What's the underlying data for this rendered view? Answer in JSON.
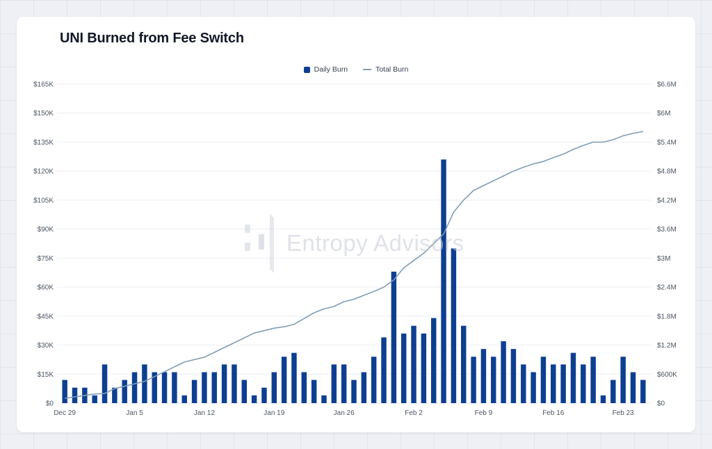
{
  "colors": {
    "bar": "#0d3f91",
    "line": "#7f9db6",
    "grid": "#eceef2",
    "tick_text": "#4b5563"
  },
  "watermark": {
    "text": "Entropy Advisors",
    "icon": "entropy-advisors-logo-icon"
  },
  "chart_data": {
    "type": "bar+line",
    "title": "UNI Burned from Fee Switch",
    "legend": [
      {
        "name": "Daily Burn",
        "kind": "bar"
      },
      {
        "name": "Total Burn",
        "kind": "line"
      }
    ],
    "y_left": {
      "range": [
        0,
        165000
      ],
      "ticks": [
        0,
        15000,
        30000,
        45000,
        60000,
        75000,
        90000,
        105000,
        120000,
        135000,
        150000,
        165000
      ],
      "tick_labels": [
        "$0",
        "$15K",
        "$30K",
        "$45K",
        "$60K",
        "$75K",
        "$90K",
        "$105K",
        "$120K",
        "$135K",
        "$150K",
        "$165K"
      ]
    },
    "y_right": {
      "range": [
        0,
        6600000
      ],
      "ticks": [
        0,
        600000,
        1200000,
        1800000,
        2400000,
        3000000,
        3600000,
        4200000,
        4800000,
        5400000,
        6000000,
        6600000
      ],
      "tick_labels": [
        "$0",
        "$600K",
        "$1.2M",
        "$1.8M",
        "$2.4M",
        "$3M",
        "$3.6M",
        "$4.2M",
        "$4.8M",
        "$5.4M",
        "$6M",
        "$6.6M"
      ]
    },
    "x_ticks": [
      {
        "index": 0,
        "label": "Dec 29"
      },
      {
        "index": 7,
        "label": "Jan 5"
      },
      {
        "index": 14,
        "label": "Jan 12"
      },
      {
        "index": 21,
        "label": "Jan 19"
      },
      {
        "index": 28,
        "label": "Jan 26"
      },
      {
        "index": 35,
        "label": "Feb 2"
      },
      {
        "index": 42,
        "label": "Feb 9"
      },
      {
        "index": 49,
        "label": "Feb 16"
      },
      {
        "index": 56,
        "label": "Feb 23"
      }
    ],
    "series": [
      {
        "name": "Daily Burn",
        "axis": "left",
        "values": [
          12000,
          8000,
          8000,
          4000,
          20000,
          8000,
          12000,
          16000,
          20000,
          16000,
          16000,
          16000,
          4000,
          12000,
          16000,
          16000,
          20000,
          20000,
          12000,
          4000,
          8000,
          16000,
          24000,
          26000,
          16000,
          12000,
          4000,
          20000,
          20000,
          12000,
          16000,
          24000,
          34000,
          68000,
          36000,
          40000,
          36000,
          44000,
          126000,
          80000,
          40000,
          24000,
          28000,
          24000,
          32000,
          28000,
          20000,
          16000,
          24000,
          20000,
          20000,
          26000,
          20000,
          24000,
          4000,
          12000,
          24000,
          16000,
          12000
        ]
      },
      {
        "name": "Total Burn",
        "axis": "right",
        "values": [
          100000,
          130000,
          160000,
          190000,
          200000,
          300000,
          350000,
          400000,
          450000,
          550000,
          650000,
          750000,
          850000,
          900000,
          950000,
          1050000,
          1150000,
          1250000,
          1350000,
          1450000,
          1500000,
          1550000,
          1580000,
          1630000,
          1750000,
          1870000,
          1950000,
          2000000,
          2100000,
          2150000,
          2230000,
          2310000,
          2400000,
          2550000,
          2800000,
          2950000,
          3100000,
          3300000,
          3500000,
          3950000,
          4200000,
          4400000,
          4500000,
          4600000,
          4700000,
          4800000,
          4880000,
          4950000,
          5000000,
          5080000,
          5150000,
          5250000,
          5330000,
          5400000,
          5400000,
          5450000,
          5530000,
          5580000,
          5620000
        ]
      }
    ]
  }
}
